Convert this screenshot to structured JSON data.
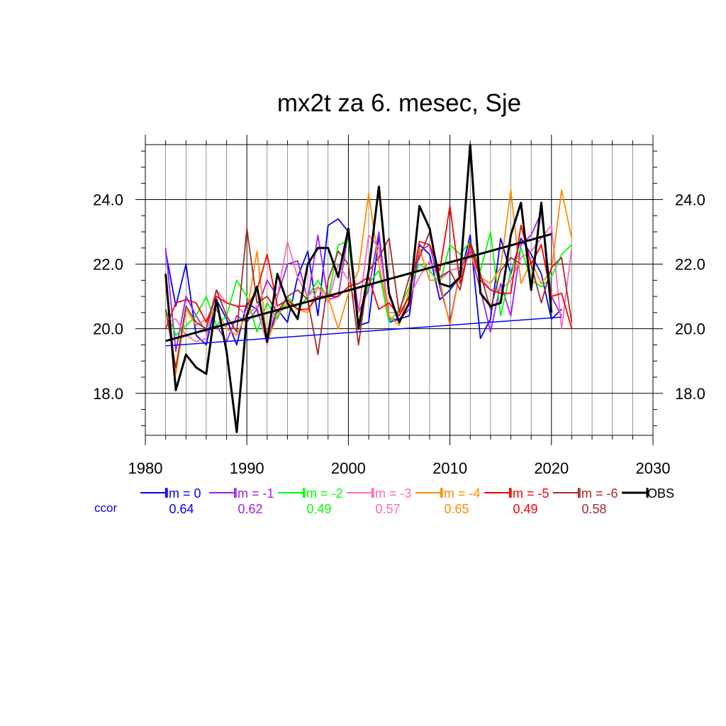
{
  "chart_data": {
    "type": "line",
    "title": "mx2t za 6. mesec, Sje",
    "xlabel": "",
    "ylabel": "",
    "xlim": [
      1980,
      2030
    ],
    "ylim": [
      16.7,
      25.7
    ],
    "x_ticks": [
      1980,
      1990,
      2000,
      2010,
      2020,
      2030
    ],
    "y_ticks": [
      18.0,
      20.0,
      22.0,
      24.0
    ],
    "x_tick_labels": [
      "1980",
      "1990",
      "2000",
      "2010",
      "2020",
      "2030"
    ],
    "y_tick_labels": [
      "18.0",
      "20.0",
      "22.0",
      "24.0"
    ],
    "grid": true,
    "legend_position": "bottom",
    "ccor_label": "ccor",
    "series": [
      {
        "name": "lm = 0",
        "color": "#0000ff",
        "ccor": "0.64",
        "x": [
          1982,
          1983,
          1984,
          1985,
          1986,
          1987,
          1988,
          1989,
          1990,
          1991,
          1992,
          1993,
          1994,
          1995,
          1996,
          1997,
          1998,
          1999,
          2000,
          2001,
          2002,
          2003,
          2004,
          2005,
          2006,
          2007,
          2008,
          2009,
          2010,
          2011,
          2012,
          2013,
          2014,
          2015,
          2016,
          2017,
          2018,
          2019,
          2020,
          2021
        ],
        "y": [
          22.4,
          20.7,
          22.0,
          19.8,
          19.5,
          20.9,
          20.3,
          19.5,
          20.8,
          20.6,
          19.6,
          20.6,
          20.2,
          21.6,
          22.4,
          20.4,
          23.2,
          23.4,
          23.0,
          20.1,
          20.2,
          22.9,
          20.2,
          20.3,
          20.4,
          22.6,
          22.3,
          20.9,
          21.2,
          21.6,
          22.9,
          19.7,
          20.3,
          22.8,
          21.7,
          22.8,
          22.3,
          21.7,
          20.3,
          20.6
        ]
      },
      {
        "name": "lm = -1",
        "color": "#a020f0",
        "ccor": "0.62",
        "x": [
          1982,
          1983,
          1984,
          1985,
          1986,
          1987,
          1988,
          1989,
          1990,
          1991,
          1992,
          1993,
          1994,
          1995,
          1996,
          1997,
          1998,
          1999,
          2000,
          2001,
          2002,
          2003,
          2004,
          2005,
          2006,
          2007,
          2008,
          2009,
          2010,
          2011,
          2012,
          2013,
          2014,
          2015,
          2016,
          2017,
          2018,
          2019,
          2020,
          2021
        ],
        "y": [
          22.5,
          19.3,
          21.0,
          20.4,
          19.9,
          20.1,
          19.6,
          20.4,
          20.2,
          20.6,
          21.5,
          21.0,
          22.0,
          22.1,
          20.9,
          22.9,
          20.9,
          21.0,
          23.0,
          20.5,
          21.2,
          23.0,
          20.3,
          20.3,
          20.6,
          22.4,
          22.6,
          21.3,
          20.2,
          21.8,
          22.4,
          21.2,
          19.9,
          21.4,
          20.4,
          22.6,
          22.9,
          23.6,
          21.0,
          20.4
        ]
      },
      {
        "name": "lm = -2",
        "color": "#00ff00",
        "ccor": "0.49",
        "x": [
          1982,
          1983,
          1984,
          1985,
          1986,
          1987,
          1988,
          1989,
          1990,
          1991,
          1992,
          1993,
          1994,
          1995,
          1996,
          1997,
          1998,
          1999,
          2000,
          2001,
          2002,
          2003,
          2004,
          2005,
          2006,
          2007,
          2008,
          2009,
          2010,
          2011,
          2012,
          2013,
          2014,
          2015,
          2016,
          2017,
          2018,
          2019,
          2020,
          2021,
          2022
        ],
        "y": [
          20.6,
          19.8,
          20.1,
          20.4,
          21.0,
          20.1,
          20.4,
          21.5,
          21.0,
          19.9,
          20.8,
          20.3,
          21.0,
          20.6,
          21.0,
          21.5,
          20.9,
          22.6,
          22.7,
          20.2,
          21.4,
          21.8,
          20.2,
          20.6,
          21.3,
          22.0,
          21.8,
          21.4,
          22.6,
          22.3,
          22.7,
          21.8,
          23.0,
          20.4,
          21.8,
          22.5,
          21.5,
          21.3,
          21.6,
          22.3,
          22.6
        ]
      },
      {
        "name": "lm = -3",
        "color": "#ff69b4",
        "ccor": "0.57",
        "x": [
          1982,
          1983,
          1984,
          1985,
          1986,
          1987,
          1988,
          1989,
          1990,
          1991,
          1992,
          1993,
          1994,
          1995,
          1996,
          1997,
          1998,
          1999,
          2000,
          2001,
          2002,
          2003,
          2004,
          2005,
          2006,
          2007,
          2008,
          2009,
          2010,
          2011,
          2012,
          2013,
          2014,
          2015,
          2016,
          2017,
          2018,
          2019,
          2020,
          2021,
          2022
        ],
        "y": [
          20.2,
          20.3,
          19.8,
          19.6,
          19.7,
          21.2,
          20.8,
          20.7,
          20.4,
          20.7,
          19.5,
          21.0,
          22.7,
          21.6,
          21.0,
          21.3,
          20.8,
          22.0,
          21.5,
          20.5,
          22.9,
          22.5,
          20.5,
          20.5,
          21.0,
          21.6,
          22.1,
          21.5,
          21.8,
          21.9,
          22.5,
          21.6,
          21.2,
          21.2,
          21.5,
          22.2,
          22.4,
          22.8,
          23.2,
          20.0,
          22.5
        ]
      },
      {
        "name": "lm = -4",
        "color": "#ff8c00",
        "ccor": "0.65",
        "x": [
          1982,
          1983,
          1984,
          1985,
          1986,
          1987,
          1988,
          1989,
          1990,
          1991,
          1992,
          1993,
          1994,
          1995,
          1996,
          1997,
          1998,
          1999,
          2000,
          2001,
          2002,
          2003,
          2004,
          2005,
          2006,
          2007,
          2008,
          2009,
          2010,
          2011,
          2012,
          2013,
          2014,
          2015,
          2016,
          2017,
          2018,
          2019,
          2020,
          2021,
          2022
        ],
        "y": [
          21.4,
          18.6,
          20.6,
          20.1,
          20.3,
          20.6,
          20.0,
          19.8,
          20.5,
          22.4,
          19.6,
          20.4,
          20.8,
          20.6,
          20.5,
          21.3,
          21.0,
          20.0,
          21.1,
          21.8,
          24.2,
          22.0,
          20.4,
          20.1,
          21.2,
          22.5,
          21.5,
          21.5,
          20.1,
          21.8,
          22.3,
          21.6,
          21.4,
          21.9,
          24.3,
          21.4,
          22.1,
          21.4,
          21.8,
          24.3,
          22.8
        ]
      },
      {
        "name": "lm = -5",
        "color": "#ff0000",
        "ccor": "0.49",
        "x": [
          1982,
          1983,
          1984,
          1985,
          1986,
          1987,
          1988,
          1989,
          1990,
          1991,
          1992,
          1993,
          1994,
          1995,
          1996,
          1997,
          1998,
          1999,
          2000,
          2001,
          2002,
          2003,
          2004,
          2005,
          2006,
          2007,
          2008,
          2009,
          2010,
          2011,
          2012,
          2013,
          2014,
          2015,
          2016,
          2017,
          2018,
          2019,
          2020,
          2021,
          2022
        ],
        "y": [
          20.0,
          20.8,
          20.9,
          20.8,
          20.2,
          21.0,
          20.8,
          20.7,
          20.7,
          21.2,
          22.3,
          20.7,
          20.9,
          20.6,
          20.6,
          21.0,
          21.0,
          21.0,
          21.3,
          21.4,
          21.6,
          20.6,
          20.8,
          20.4,
          21.0,
          22.7,
          22.6,
          21.8,
          23.8,
          21.4,
          22.6,
          21.5,
          21.2,
          21.1,
          21.1,
          23.2,
          22.0,
          22.6,
          21.0,
          21.1,
          20.0
        ]
      },
      {
        "name": "lm = -6",
        "color": "#a52a2a",
        "ccor": "0.58",
        "x": [
          1982,
          1983,
          1984,
          1985,
          1986,
          1987,
          1988,
          1989,
          1990,
          1991,
          1992,
          1993,
          1994,
          1995,
          1996,
          1997,
          1998,
          1999,
          2000,
          2001,
          2002,
          2003,
          2004,
          2005,
          2006,
          2007,
          2008,
          2009,
          2010,
          2011,
          2012,
          2013,
          2014,
          2015,
          2016,
          2017,
          2018,
          2019,
          2020,
          2021,
          2022
        ],
        "y": [
          20.6,
          18.8,
          20.7,
          20.2,
          20.0,
          21.2,
          20.4,
          19.9,
          23.1,
          20.8,
          21.0,
          20.5,
          21.0,
          21.2,
          20.9,
          19.2,
          21.5,
          22.4,
          22.0,
          19.5,
          21.8,
          22.2,
          22.8,
          20.5,
          21.6,
          22.2,
          23.0,
          21.6,
          21.8,
          21.2,
          22.7,
          21.7,
          20.6,
          21.8,
          22.2,
          22.0,
          22.0,
          20.8,
          21.9,
          22.2,
          20.2
        ]
      },
      {
        "name": "OBS",
        "color": "#000000",
        "ccor": "",
        "x": [
          1982,
          1983,
          1984,
          1985,
          1986,
          1987,
          1988,
          1989,
          1990,
          1991,
          1992,
          1993,
          1994,
          1995,
          1996,
          1997,
          1998,
          1999,
          2000,
          2001,
          2002,
          2003,
          2004,
          2005,
          2006,
          2007,
          2008,
          2009,
          2010,
          2011,
          2012,
          2013,
          2014,
          2015,
          2016,
          2017,
          2018,
          2019,
          2020
        ],
        "y": [
          21.7,
          18.1,
          19.2,
          18.8,
          18.6,
          20.9,
          19.3,
          16.8,
          20.4,
          21.3,
          19.6,
          21.7,
          20.8,
          20.3,
          22.0,
          22.5,
          22.5,
          21.6,
          23.1,
          20.0,
          21.8,
          24.4,
          21.1,
          20.2,
          20.8,
          23.8,
          23.1,
          21.4,
          21.3,
          21.6,
          25.7,
          21.1,
          20.7,
          20.8,
          22.9,
          23.9,
          21.2,
          23.9,
          20.5
        ]
      }
    ],
    "trend_lines": [
      {
        "series": "lm = 0",
        "color": "#0000ff",
        "x": [
          1982,
          2021
        ],
        "y": [
          19.47,
          20.36
        ]
      },
      {
        "series": "OBS",
        "color": "#000000",
        "x": [
          1982,
          2020
        ],
        "y": [
          19.62,
          22.93
        ]
      }
    ]
  }
}
